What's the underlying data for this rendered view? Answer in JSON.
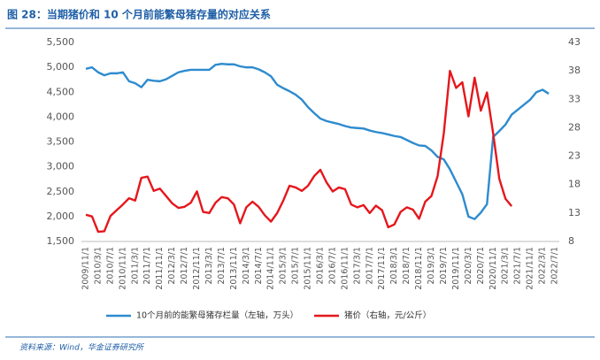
{
  "chart_data": {
    "type": "line",
    "title": "图 28：当期猪价和 10 个月前能繁母猪存量的对应关系",
    "source": "资料来源：Wind，华金证券研究所",
    "categories": [
      "2009/11/1",
      null,
      "2010/3/1",
      null,
      "2010/7/1",
      null,
      "2010/11/1",
      null,
      "2011/3/1",
      null,
      "2011/7/1",
      null,
      "2011/11/1",
      null,
      "2012/3/1",
      null,
      "2012/7/1",
      null,
      "2012/11/1",
      null,
      "2013/3/1",
      null,
      "2013/7/1",
      null,
      "2013/11/1",
      null,
      "2014/3/1",
      null,
      "2014/7/1",
      null,
      "2014/11/1",
      null,
      "2015/3/1",
      null,
      "2015/7/1",
      null,
      "2015/11/1",
      null,
      "2016/3/1",
      null,
      "2016/7/1",
      null,
      "2016/11/1",
      null,
      "2017/3/1",
      null,
      "2017/7/1",
      null,
      "2017/11/1",
      null,
      "2018/3/1",
      null,
      "2018/7/1",
      null,
      "2018/11/1",
      null,
      "2019/3/1",
      null,
      "2019/7/1",
      null,
      "2019/11/1",
      null,
      "2020/3/1",
      null,
      "2020/7/1",
      null,
      "2020/11/1",
      null,
      "2021/3/1",
      null,
      "2021/7/1",
      null,
      "2021/11/1",
      null,
      "2022/3/1",
      null,
      "2022/7/1"
    ],
    "series": [
      {
        "name": "10个月前的能繁母猪存栏量（左轴，万头）",
        "color": "#2e8bcf",
        "axis": "y",
        "values": [
          4970,
          5000,
          4900,
          4840,
          4880,
          4880,
          4900,
          4720,
          4680,
          4600,
          4750,
          4730,
          4720,
          4760,
          4830,
          4900,
          4930,
          4950,
          4950,
          4950,
          4950,
          5050,
          5070,
          5060,
          5060,
          5020,
          5000,
          5000,
          4960,
          4900,
          4820,
          4650,
          4580,
          4520,
          4450,
          4350,
          4200,
          4080,
          3970,
          3920,
          3890,
          3860,
          3820,
          3790,
          3780,
          3770,
          3730,
          3700,
          3680,
          3650,
          3620,
          3600,
          3540,
          3480,
          3430,
          3420,
          3330,
          3200,
          3150,
          2950,
          2700,
          2450,
          2000,
          1950,
          2080,
          2250,
          3600,
          3720,
          3850,
          4050,
          4150,
          4250,
          4350,
          4500,
          4550,
          4470,
          null
        ]
      },
      {
        "name": "猪价（右轴，元/公斤）",
        "color": "#e5171c",
        "axis": "y2",
        "values": [
          12.7,
          12.4,
          9.7,
          9.8,
          12.5,
          13.5,
          14.5,
          15.6,
          15.2,
          19.2,
          19.4,
          16.9,
          17.3,
          16,
          14.7,
          13.9,
          14.1,
          14.8,
          16.8,
          13.2,
          13,
          14.8,
          15.8,
          15.6,
          14.5,
          11.2,
          14,
          15,
          14.1,
          12.6,
          11.5,
          13,
          15.2,
          17.8,
          17.5,
          16.9,
          17.8,
          19.5,
          20.6,
          18.4,
          16.8,
          17.5,
          17.2,
          14.5,
          14,
          14.4,
          13,
          14.3,
          13.5,
          10.5,
          11,
          13.2,
          14,
          13.6,
          12,
          15,
          16,
          19.5,
          27,
          38,
          35,
          36,
          30,
          36.8,
          31,
          34.2,
          27,
          19,
          15.5,
          14.2,
          null,
          null,
          null,
          null,
          null,
          null,
          null
        ]
      }
    ],
    "ylim": [
      1500,
      5500
    ],
    "yticks": [
      {
        "value": 1500,
        "label": "1,500"
      },
      {
        "value": 2000,
        "label": "2,000"
      },
      {
        "value": 2500,
        "label": "2,500"
      },
      {
        "value": 3000,
        "label": "3,000"
      },
      {
        "value": 3500,
        "label": "3,500"
      },
      {
        "value": 4000,
        "label": "4,000"
      },
      {
        "value": 4500,
        "label": "4,500"
      },
      {
        "value": 5000,
        "label": "5,000"
      },
      {
        "value": 5500,
        "label": "5,500"
      }
    ],
    "y2lim": [
      8,
      43
    ],
    "y2ticks": [
      8,
      13,
      18,
      23,
      28,
      33,
      38,
      43
    ],
    "grid": false
  }
}
